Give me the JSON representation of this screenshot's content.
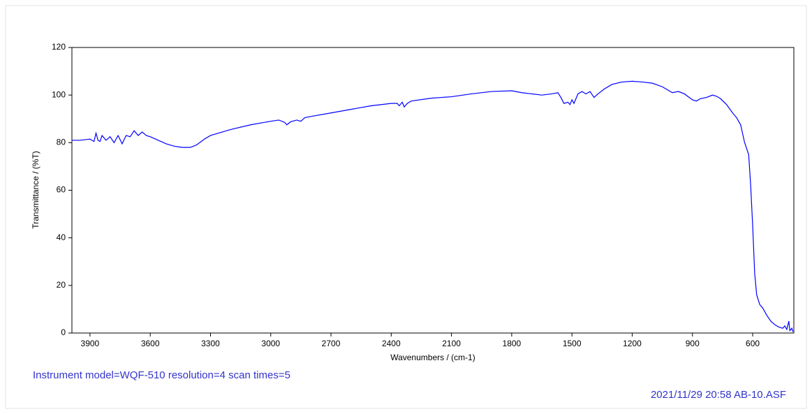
{
  "chart_data": {
    "type": "line",
    "xlabel": "Wavenumbers / (cm-1)",
    "ylabel": "Transmittance / (%T)",
    "note": "Instrument model=WQF-510 resolution=4 scan times=5",
    "footer": "2021/11/29 20:58 AB-10.ASF",
    "color": "#0000ff",
    "x": [
      3990,
      3950,
      3900,
      3880,
      3870,
      3860,
      3850,
      3840,
      3820,
      3800,
      3780,
      3760,
      3740,
      3720,
      3700,
      3680,
      3660,
      3640,
      3620,
      3600,
      3560,
      3520,
      3480,
      3440,
      3400,
      3370,
      3330,
      3300,
      3200,
      3100,
      3000,
      2960,
      2930,
      2920,
      2900,
      2870,
      2850,
      2830,
      2800,
      2700,
      2600,
      2500,
      2400,
      2370,
      2360,
      2345,
      2335,
      2320,
      2300,
      2200,
      2100,
      2000,
      1900,
      1800,
      1750,
      1700,
      1650,
      1600,
      1570,
      1555,
      1540,
      1520,
      1510,
      1500,
      1490,
      1470,
      1450,
      1430,
      1410,
      1390,
      1370,
      1340,
      1300,
      1250,
      1200,
      1150,
      1100,
      1050,
      1000,
      970,
      940,
      900,
      880,
      860,
      830,
      800,
      780,
      760,
      730,
      700,
      680,
      660,
      640,
      620,
      610,
      600,
      590,
      580,
      565,
      550,
      530,
      510,
      490,
      470,
      450,
      440,
      430,
      420,
      415,
      405,
      400
    ],
    "values": [
      81,
      81,
      81.5,
      80.5,
      84,
      81,
      80.5,
      83,
      81,
      82.5,
      80,
      83,
      79.5,
      83,
      82.5,
      85,
      83,
      84.5,
      83,
      82.5,
      81,
      79.5,
      78.5,
      78,
      78,
      79,
      81.5,
      83,
      85.5,
      87.5,
      89,
      89.5,
      88.5,
      87.5,
      88.8,
      89.5,
      89,
      90.5,
      91,
      92.5,
      94,
      95.5,
      96.5,
      96.5,
      95.5,
      97,
      95,
      96.5,
      97.5,
      98.7,
      99.3,
      100.5,
      101.5,
      101.8,
      101,
      100.5,
      100,
      100.5,
      101,
      99,
      96.5,
      97,
      96,
      98,
      96.5,
      100.5,
      101.5,
      100.5,
      101.5,
      99,
      100.5,
      102.5,
      104.5,
      105.5,
      105.8,
      105.5,
      105,
      103.5,
      101,
      101.5,
      100.5,
      98,
      97.5,
      98.5,
      99,
      100,
      99.5,
      98.5,
      96,
      92.5,
      90.5,
      87.5,
      80,
      75,
      62,
      45,
      25,
      16,
      12,
      10.5,
      7.5,
      5,
      3.5,
      2.5,
      2,
      3,
      1.5,
      5,
      1,
      2,
      0.5
    ],
    "xlim": [
      3990,
      395
    ],
    "xticks": [
      3900,
      3600,
      3300,
      3000,
      2700,
      2400,
      2100,
      1800,
      1500,
      1200,
      900,
      600
    ],
    "ylim": [
      0,
      120
    ],
    "yticks": [
      0,
      20,
      40,
      60,
      80,
      100,
      120
    ]
  }
}
